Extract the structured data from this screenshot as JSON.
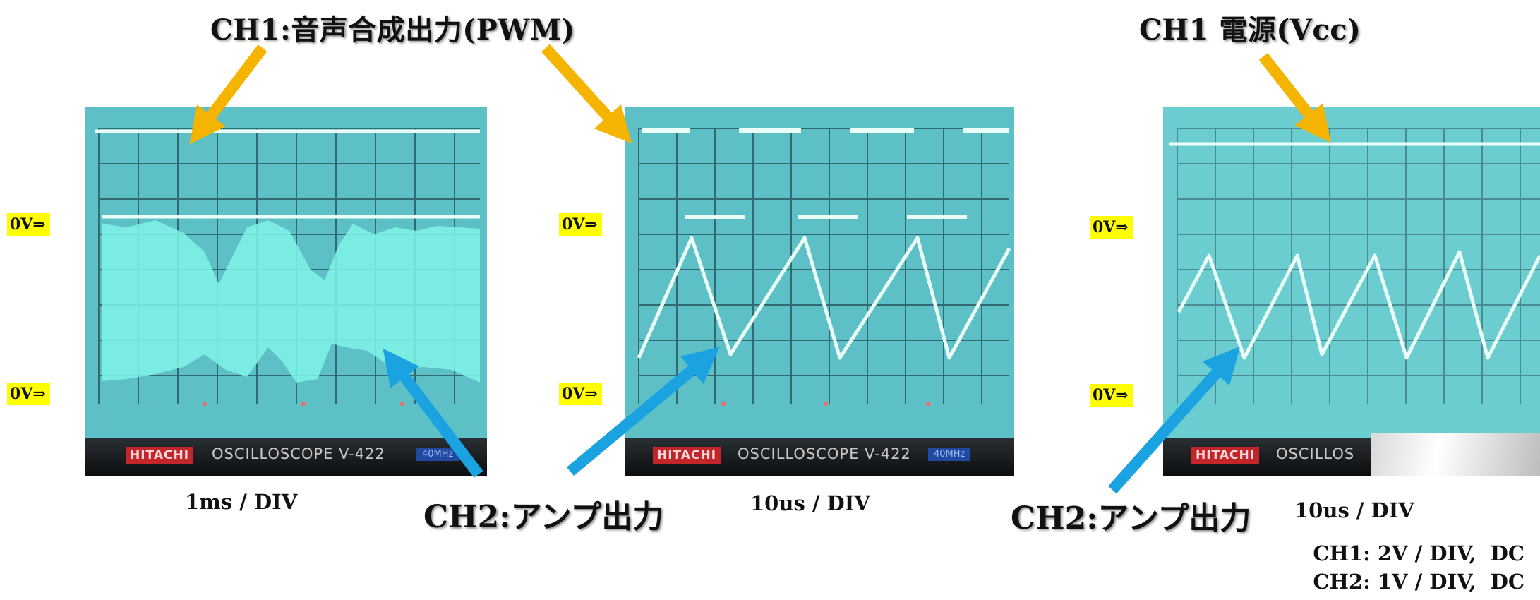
{
  "titles": {
    "ch1_pwm": "CH1:音声合成出力(PWM)",
    "ch1_vcc": "CH1 電源(Vcc)"
  },
  "ch2_labels": [
    "CH2:アンプ出力",
    "CH2:アンプ出力"
  ],
  "zero_marker": "0V⇒",
  "scopes": [
    {
      "timebase": "1ms / DIV",
      "brand": "HITACHI",
      "model": "OSCILLOSCOPE  V-422",
      "badge": "40MHz"
    },
    {
      "timebase": "10us / DIV",
      "brand": "HITACHI",
      "model": "OSCILLOSCOPE  V-422",
      "badge": "40MHz"
    },
    {
      "timebase": "10us / DIV",
      "brand": "HITACHI",
      "model": "OSCILLOS",
      "badge": ""
    }
  ],
  "settings": {
    "ch1": "CH1: 2V / DIV,  DC",
    "ch2": "CH2: 1V / DIV,  DC"
  },
  "colors": {
    "screen": "#5fc3c7",
    "grid": "#2e5a62",
    "trace": "#e9fff7",
    "arrow_ch1": "#f5b400",
    "arrow_ch2": "#1aa3e0",
    "zero_marker_bg": "#ffff00"
  },
  "icons": [
    "hitachi-logo",
    "arrow-down-right",
    "arrow-up-left"
  ]
}
